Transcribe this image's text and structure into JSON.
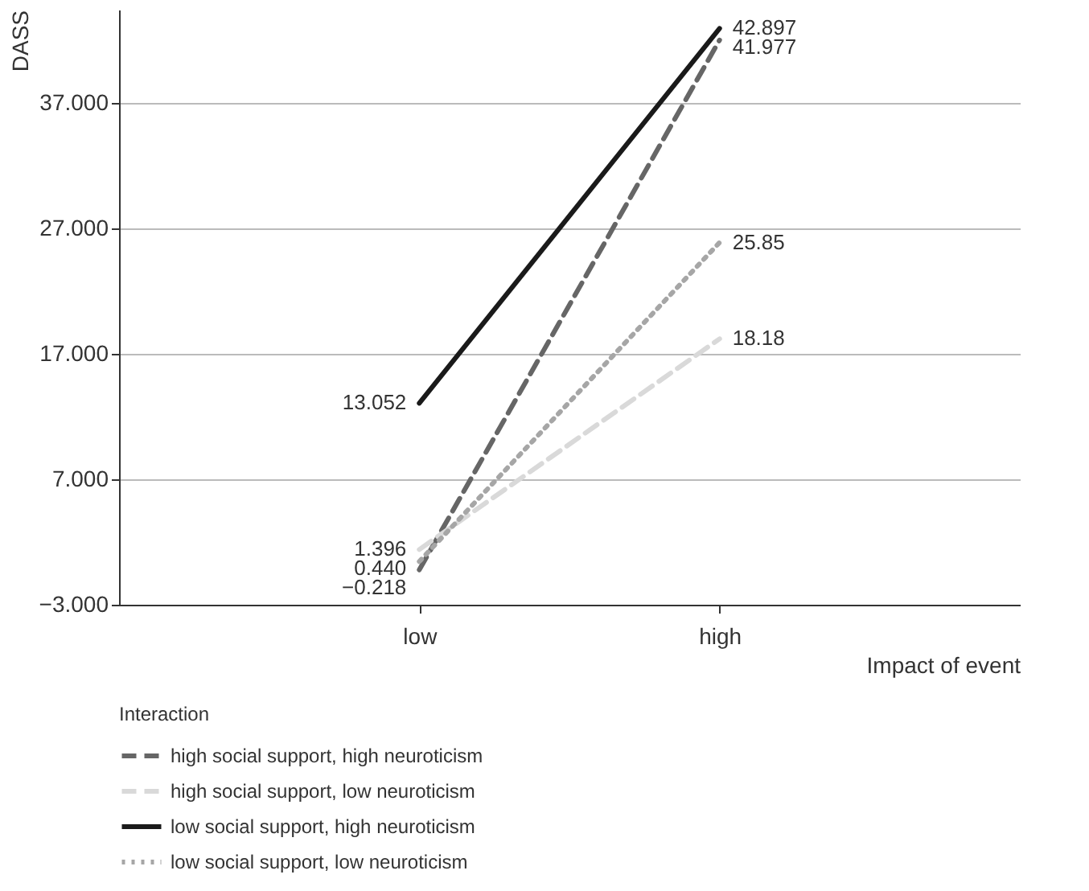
{
  "chart_data": {
    "type": "line",
    "xlabel": "Impact of event",
    "ylabel": "DASS",
    "legend_title": "Interaction",
    "categories": [
      "low",
      "high"
    ],
    "series": [
      {
        "name": "high social support, high neuroticism",
        "color": "#666666",
        "line_style": "dashed",
        "values": [
          -0.218,
          41.977
        ],
        "value_labels": [
          "−0.218",
          "41.977"
        ]
      },
      {
        "name": "high social support, low neuroticism",
        "color": "#d9d9d9",
        "line_style": "dashed",
        "values": [
          1.396,
          18.18
        ],
        "value_labels": [
          "1.396",
          "18.18"
        ]
      },
      {
        "name": "low social support, high neuroticism",
        "color": "#1a1a1a",
        "line_style": "solid",
        "values": [
          13.052,
          42.897
        ],
        "value_labels": [
          "13.052",
          "42.897"
        ]
      },
      {
        "name": "low social support, low neuroticism",
        "color": "#a6a6a6",
        "line_style": "dotted",
        "values": [
          0.44,
          25.85
        ],
        "value_labels": [
          "0.440",
          "25.85"
        ]
      }
    ],
    "ylim": [
      -3,
      44.4
    ],
    "yticks": [
      {
        "value": -3,
        "label": "−3.000"
      },
      {
        "value": 7,
        "label": "7.000"
      },
      {
        "value": 17,
        "label": "17.000"
      },
      {
        "value": 27,
        "label": "27.000"
      },
      {
        "value": 37,
        "label": "37.000"
      }
    ],
    "grid": "y",
    "legend": "bottom left",
    "marker": "none"
  }
}
